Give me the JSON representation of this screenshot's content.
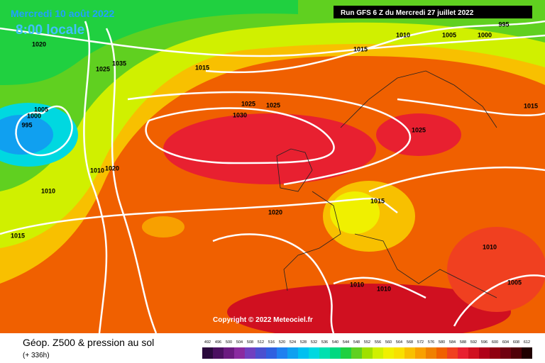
{
  "header": {
    "date": "Mercredi 10 août 2022",
    "time": "8:00 locale",
    "run": "Run GFS 6 Z du Mercredi 27 juillet 2022"
  },
  "copyright": "Copyright © 2022 Meteociel.fr",
  "footer": {
    "title": "Géop. Z500 & pression au sol",
    "lead": "(+ 336h)"
  },
  "isobar_labels": [
    "1020",
    "1025",
    "1035",
    "1015",
    "1015",
    "1010",
    "1005",
    "1000",
    "995",
    "1005",
    "1000",
    "995",
    "1025",
    "1025",
    "1030",
    "1015",
    "1025",
    "1010",
    "1020",
    "1010",
    "1020",
    "1015",
    "1015",
    "1010",
    "1010",
    "1010",
    "1005"
  ],
  "scale": {
    "values": [
      492,
      496,
      500,
      504,
      508,
      512,
      516,
      520,
      524,
      528,
      532,
      536,
      540,
      544,
      548,
      552,
      556,
      560,
      564,
      568,
      572,
      576,
      580,
      584,
      588,
      592,
      596,
      600,
      604,
      608,
      612
    ],
    "colors": [
      "#2b0a3d",
      "#4b1060",
      "#6b1a80",
      "#8a2aa0",
      "#7040c0",
      "#4b50d0",
      "#3060e0",
      "#2080f0",
      "#10a0f0",
      "#00c0f0",
      "#00d8e0",
      "#00e0b0",
      "#00d880",
      "#20d040",
      "#60d020",
      "#a0e000",
      "#d0f000",
      "#f0f000",
      "#f8e000",
      "#f8c000",
      "#f8a000",
      "#f08000",
      "#f06000",
      "#f04020",
      "#e82030",
      "#d01020",
      "#b00018",
      "#900010",
      "#700010",
      "#500008",
      "#200000"
    ]
  }
}
